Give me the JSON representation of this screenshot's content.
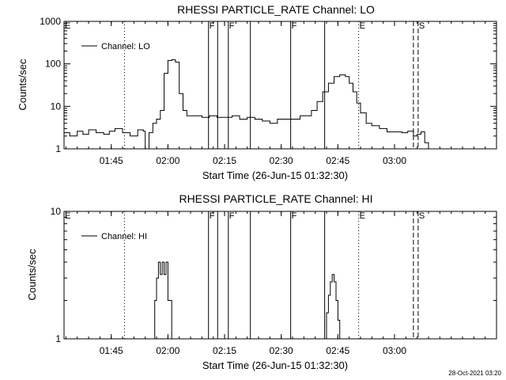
{
  "colors": {
    "background": "#ffffff",
    "foreground": "#000000"
  },
  "footer": {
    "timestamp": "28-Oct-2021 03:20"
  },
  "chart_data": [
    {
      "type": "line",
      "title": "RHESSI PARTICLE_RATE Channel: LO",
      "xlabel": "Start Time (26-Jun-15 01:32:30)",
      "ylabel": "Counts/sec",
      "yscale": "log",
      "xlim": [
        "01:32:30",
        "03:27:00"
      ],
      "ylim": [
        1,
        1000
      ],
      "x_tick_labels": [
        "01:45",
        "02:00",
        "02:15",
        "02:30",
        "02:45",
        "03:00"
      ],
      "x_ticks": [
        "01:45",
        "02:00",
        "02:15",
        "02:30",
        "02:45",
        "03:00"
      ],
      "y_tick_labels": [
        "1",
        "10",
        "100",
        "1000"
      ],
      "y_ticks": [
        1,
        10,
        100,
        1000
      ],
      "legend": {
        "position": "top-left",
        "entries": [
          "Channel: LO"
        ]
      },
      "series": [
        {
          "name": "Channel: LO",
          "x": [
            "01:32:30",
            "01:34:00",
            "01:36:00",
            "01:37:30",
            "01:39:00",
            "01:41:00",
            "01:43:00",
            "01:44:30",
            "01:46:00",
            "01:48:00",
            "01:50:00",
            "01:52:00",
            "01:53:30",
            "01:54:00",
            "01:55:00",
            "01:56:00",
            "01:57:00",
            "01:58:00",
            "01:59:00",
            "02:00:00",
            "02:01:00",
            "02:02:00",
            "02:03:00",
            "02:04:00",
            "02:05:00",
            "02:07:00",
            "02:09:00",
            "02:11:00",
            "02:13:00",
            "02:15:00",
            "02:17:00",
            "02:19:00",
            "02:21:00",
            "02:23:00",
            "02:25:00",
            "02:27:00",
            "02:29:00",
            "02:31:00",
            "02:33:00",
            "02:35:00",
            "02:36:30",
            "02:38:00",
            "02:39:30",
            "02:41:00",
            "02:42:30",
            "02:44:00",
            "02:45:30",
            "02:47:00",
            "02:48:00",
            "02:49:00",
            "02:50:00",
            "02:51:00",
            "02:52:30",
            "02:54:00",
            "02:56:00",
            "02:58:00",
            "03:00:00",
            "03:02:00",
            "03:03:30",
            "03:05:00",
            "03:06:00",
            "03:07:00",
            "03:08:00",
            "03:09:00"
          ],
          "y": [
            2.4,
            2.0,
            2.6,
            2.2,
            2.8,
            2.4,
            2.2,
            2.6,
            3.0,
            2.4,
            2.0,
            2.8,
            2.6,
            1.0,
            2.4,
            4.0,
            5.0,
            8.0,
            60,
            120,
            125,
            110,
            20,
            8,
            6,
            6,
            5.5,
            6,
            5.5,
            5.5,
            6,
            5,
            5.5,
            5,
            4.5,
            4,
            5,
            5,
            5,
            6,
            6,
            8,
            13,
            22,
            35,
            50,
            55,
            50,
            35,
            22,
            12,
            7,
            4,
            3.5,
            3,
            2.5,
            2.5,
            2.4,
            2.6,
            2.0,
            2.2,
            2.5,
            1.4,
            1.0
          ]
        }
      ],
      "markers": [
        {
          "time": "01:48:30",
          "style": "dotted",
          "label": ""
        },
        {
          "time": "02:10:45",
          "style": "solid",
          "label": "F"
        },
        {
          "time": "02:13:10",
          "style": "solid",
          "label": ""
        },
        {
          "time": "02:16:00",
          "style": "solid",
          "label": "F"
        },
        {
          "time": "02:21:50",
          "style": "solid",
          "label": ""
        },
        {
          "time": "02:32:30",
          "style": "solid",
          "label": "F"
        },
        {
          "time": "02:41:30",
          "style": "solid",
          "label": ""
        },
        {
          "time": "02:50:30",
          "style": "dotted",
          "label": "E"
        },
        {
          "time": "03:05:00",
          "style": "dashed",
          "label": ""
        },
        {
          "time": "03:06:15",
          "style": "dashed",
          "label": "S"
        }
      ],
      "corner_labels": [
        "E"
      ]
    },
    {
      "type": "line",
      "title": "RHESSI PARTICLE_RATE Channel: HI",
      "xlabel": "Start Time (26-Jun-15 01:32:30)",
      "ylabel": "Counts/sec",
      "yscale": "log",
      "xlim": [
        "01:32:30",
        "03:27:00"
      ],
      "ylim": [
        1,
        10
      ],
      "x_tick_labels": [
        "01:45",
        "02:00",
        "02:15",
        "02:30",
        "02:45",
        "03:00"
      ],
      "x_ticks": [
        "01:45",
        "02:00",
        "02:15",
        "02:30",
        "02:45",
        "03:00"
      ],
      "y_tick_labels": [
        "1",
        "10"
      ],
      "y_ticks": [
        1,
        10
      ],
      "legend": {
        "position": "top-left",
        "entries": [
          "Channel: HI"
        ]
      },
      "series": [
        {
          "name": "Channel: HI",
          "x": [
            "01:55:30",
            "01:56:30",
            "01:57:00",
            "01:57:30",
            "01:58:00",
            "01:58:30",
            "01:59:00",
            "01:59:30",
            "02:00:00",
            "02:01:00"
          ],
          "y": [
            1.0,
            2.0,
            3.0,
            4.0,
            3.2,
            4.0,
            3.2,
            4.0,
            2.0,
            1.0
          ],
          "x2": [
            "02:41:30",
            "02:42:00",
            "02:42:30",
            "02:43:00",
            "02:43:30",
            "02:44:00",
            "02:44:30",
            "02:45:00",
            "02:45:30"
          ],
          "y2": [
            1.0,
            1.6,
            2.2,
            2.8,
            3.2,
            2.8,
            2.0,
            1.4,
            1.0
          ]
        }
      ],
      "markers": [
        {
          "time": "01:48:30",
          "style": "dotted",
          "label": ""
        },
        {
          "time": "02:10:45",
          "style": "solid",
          "label": "F"
        },
        {
          "time": "02:13:10",
          "style": "solid",
          "label": ""
        },
        {
          "time": "02:16:00",
          "style": "solid",
          "label": "F"
        },
        {
          "time": "02:21:50",
          "style": "solid",
          "label": ""
        },
        {
          "time": "02:32:30",
          "style": "solid",
          "label": "F"
        },
        {
          "time": "02:41:30",
          "style": "solid",
          "label": ""
        },
        {
          "time": "02:50:30",
          "style": "dotted",
          "label": "E"
        },
        {
          "time": "03:05:00",
          "style": "dashed",
          "label": ""
        },
        {
          "time": "03:06:15",
          "style": "dashed",
          "label": "S"
        }
      ],
      "corner_labels": [
        "E"
      ]
    }
  ]
}
